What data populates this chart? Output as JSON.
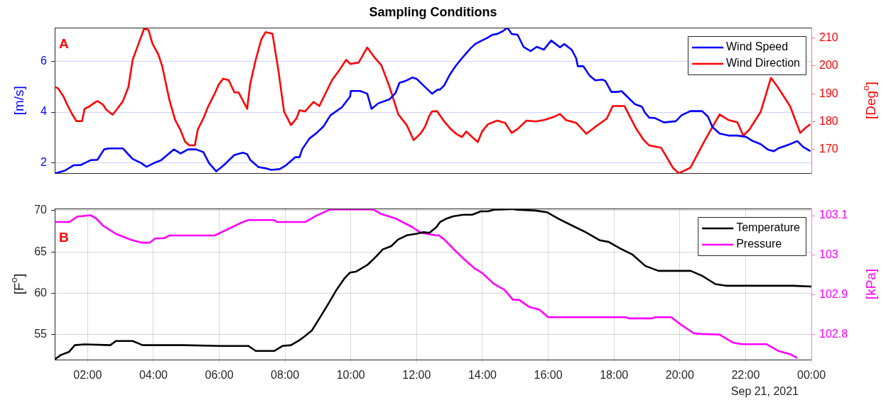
{
  "chart_data": [
    {
      "type": "line",
      "title": "Sampling Conditions",
      "ylabel": "[m/s]",
      "y2label": "[Deg$^{o}$]",
      "annotations": [
        "A"
      ],
      "xlim": [
        1,
        24
      ],
      "ylim": [
        1.57,
        7.35
      ],
      "yticks": [
        2,
        4,
        6
      ],
      "y2lim": [
        161.5,
        213.7
      ],
      "y2ticks": [
        170,
        180,
        190,
        200,
        210
      ],
      "grid": "y",
      "legend": "top right",
      "tick_labels": "y",
      "marker": "none",
      "line_style": "solid",
      "series": [
        {
          "name": "Wind Speed",
          "color": "#0000ff",
          "x": [
            1.01,
            1.31,
            1.57,
            1.79,
            1.91,
            2.09,
            2.3,
            2.5,
            2.64,
            3.07,
            3.24,
            3.37,
            3.63,
            3.79,
            4.02,
            4.23,
            4.62,
            4.83,
            5.05,
            5.3,
            5.52,
            5.69,
            5.91,
            6.12,
            6.46,
            6.72,
            6.85,
            6.94,
            7.19,
            7.45,
            7.58,
            7.84,
            8.01,
            8.18,
            8.31,
            8.44,
            8.52,
            8.74,
            8.95,
            9.17,
            9.38,
            9.73,
            9.98,
            10.0,
            10.28,
            10.5,
            10.63,
            10.84,
            11.18,
            11.36,
            11.48,
            11.65,
            11.87,
            12.0,
            12.3,
            12.47,
            12.64,
            12.71,
            12.84,
            13.02,
            13.2,
            13.38,
            13.64,
            13.78,
            13.95,
            14.13,
            14.31,
            14.45,
            14.62,
            14.76,
            14.89,
            15.07,
            15.25,
            15.47,
            15.65,
            15.87,
            16.09,
            16.23,
            16.36,
            16.49,
            16.71,
            16.85,
            16.9,
            17.07,
            17.25,
            17.43,
            17.65,
            17.74,
            17.92,
            18.09,
            18.23,
            18.45,
            18.63,
            18.85,
            18.94,
            19.07,
            19.25,
            19.52,
            19.88,
            20.05,
            20.32,
            20.68,
            20.86,
            20.99,
            21.21,
            21.48,
            21.75,
            22.01,
            22.19,
            22.46,
            22.68,
            22.86,
            22.99,
            23.35,
            23.57,
            23.75,
            23.97
          ],
          "values": [
            1.57,
            1.68,
            1.89,
            1.9,
            1.98,
            2.09,
            2.11,
            2.52,
            2.56,
            2.56,
            2.32,
            2.14,
            1.98,
            1.83,
            1.98,
            2.09,
            2.52,
            2.36,
            2.52,
            2.52,
            2.41,
            1.98,
            1.65,
            1.87,
            2.3,
            2.39,
            2.33,
            2.11,
            1.82,
            1.76,
            1.71,
            1.74,
            1.87,
            2.06,
            2.21,
            2.21,
            2.52,
            2.95,
            3.16,
            3.43,
            3.87,
            4.19,
            4.62,
            4.84,
            4.84,
            4.73,
            4.13,
            4.35,
            4.51,
            4.76,
            5.16,
            5.23,
            5.37,
            5.32,
            4.94,
            4.73,
            4.89,
            4.89,
            5.06,
            5.51,
            5.85,
            6.14,
            6.53,
            6.7,
            6.82,
            6.93,
            7.07,
            7.1,
            7.21,
            7.35,
            7.1,
            7.07,
            6.59,
            6.42,
            6.59,
            6.48,
            6.84,
            6.7,
            6.57,
            6.7,
            6.48,
            6.14,
            5.82,
            5.82,
            5.46,
            5.26,
            5.29,
            5.23,
            4.8,
            4.8,
            4.83,
            4.55,
            4.32,
            4.21,
            3.98,
            3.78,
            3.76,
            3.59,
            3.64,
            3.87,
            4.04,
            4.04,
            3.81,
            3.41,
            3.15,
            3.07,
            3.07,
            3.02,
            2.87,
            2.73,
            2.51,
            2.45,
            2.56,
            2.73,
            2.85,
            2.62,
            2.45
          ]
        },
        {
          "name": "Wind Direction",
          "color": "#ff0000",
          "axis": "y2",
          "x": [
            1.01,
            1.1,
            1.27,
            1.36,
            1.53,
            1.66,
            1.83,
            1.91,
            2.04,
            2.21,
            2.3,
            2.47,
            2.56,
            2.76,
            2.9,
            3.07,
            3.24,
            3.37,
            3.55,
            3.72,
            3.85,
            3.97,
            4.15,
            4.27,
            4.49,
            4.66,
            4.83,
            4.96,
            5.09,
            5.26,
            5.35,
            5.52,
            5.67,
            5.86,
            5.99,
            6.12,
            6.29,
            6.46,
            6.59,
            6.85,
            6.94,
            7.11,
            7.28,
            7.41,
            7.62,
            7.8,
            7.97,
            8.18,
            8.35,
            8.44,
            8.61,
            8.87,
            9.04,
            9.43,
            9.64,
            9.86,
            9.98,
            10.24,
            10.5,
            10.71,
            10.93,
            11.18,
            11.44,
            11.7,
            11.91,
            12.13,
            12.26,
            12.39,
            12.47,
            12.62,
            12.84,
            13.02,
            13.2,
            13.38,
            13.51,
            13.69,
            13.86,
            13.99,
            14.17,
            14.45,
            14.69,
            14.89,
            15.07,
            15.34,
            15.61,
            15.87,
            16.14,
            16.36,
            16.54,
            16.85,
            17.16,
            17.47,
            17.78,
            17.96,
            18.32,
            18.67,
            18.9,
            19.07,
            19.43,
            19.79,
            19.97,
            20.32,
            20.77,
            21.21,
            21.48,
            21.75,
            21.93,
            22.11,
            22.46,
            22.77,
            22.99,
            23.35,
            23.48,
            23.66,
            23.84,
            23.97
          ],
          "values": [
            192.4,
            192.0,
            189.0,
            186.6,
            182.7,
            180.2,
            180.2,
            184.6,
            185.4,
            186.8,
            187.4,
            186.1,
            184.4,
            182.5,
            184.6,
            187.3,
            192.4,
            202.2,
            208.0,
            213.4,
            212.9,
            208.0,
            204.1,
            199.8,
            187.6,
            180.7,
            176.8,
            172.9,
            171.5,
            171.5,
            177.3,
            181.2,
            185.6,
            190.0,
            193.4,
            195.4,
            194.9,
            190.5,
            190.5,
            184.6,
            193.4,
            202.2,
            209.5,
            212.1,
            211.5,
            198.3,
            183.7,
            178.8,
            181.2,
            184.1,
            183.7,
            187.1,
            185.6,
            194.9,
            198.3,
            202.2,
            200.7,
            201.2,
            206.6,
            203.2,
            200.2,
            192.4,
            182.7,
            178.8,
            173.4,
            175.9,
            178.3,
            182.2,
            183.7,
            183.8,
            180.1,
            177.6,
            175.7,
            174.5,
            176.5,
            174.5,
            172.7,
            176.5,
            179.1,
            180.4,
            179.6,
            176.0,
            177.4,
            180.4,
            180.1,
            180.6,
            181.6,
            182.8,
            180.6,
            179.6,
            175.7,
            178.5,
            181.1,
            185.6,
            185.6,
            177.6,
            173.5,
            171.5,
            170.7,
            163.5,
            161.5,
            163.5,
            173.5,
            182.6,
            180.6,
            179.8,
            175.0,
            177.1,
            183.6,
            195.7,
            192.2,
            185.6,
            181.6,
            176.0,
            178.0,
            179.1
          ]
        }
      ]
    },
    {
      "type": "line",
      "ylabel": "[F$^{o}$]",
      "y2label": "[kPa]",
      "annotations": [
        "B",
        "Sep 21, 2021"
      ],
      "xlim": [
        1,
        24
      ],
      "xticks": [
        {
          "value": 2,
          "label": "02:00"
        },
        {
          "value": 4,
          "label": "04:00"
        },
        {
          "value": 6,
          "label": "06:00"
        },
        {
          "value": 8,
          "label": "08:00"
        },
        {
          "value": 10,
          "label": "10:00"
        },
        {
          "value": 12,
          "label": "12:00"
        },
        {
          "value": 14,
          "label": "14:00"
        },
        {
          "value": 16,
          "label": "16:00"
        },
        {
          "value": 18,
          "label": "18:00"
        },
        {
          "value": 20,
          "label": "20:00"
        },
        {
          "value": 22,
          "label": "22:00"
        },
        {
          "value": 24,
          "label": "00:00"
        }
      ],
      "ylim": [
        51.95,
        70.25
      ],
      "yticks": [
        55,
        60,
        65,
        70
      ],
      "y2lim": [
        102.737,
        103.118
      ],
      "y2ticks": [
        102.8,
        102.9,
        103,
        103.1
      ],
      "grid": true,
      "legend": "top right",
      "marker": "none",
      "line_style": "solid",
      "series": [
        {
          "name": "Temperature",
          "color": "#000000",
          "x": [
            1.01,
            1.18,
            1.44,
            1.61,
            1.91,
            2.69,
            2.86,
            3.37,
            3.67,
            4.92,
            6.03,
            6.89,
            7.11,
            7.67,
            7.92,
            8.18,
            8.44,
            8.61,
            8.82,
            9.04,
            9.3,
            9.55,
            9.81,
            9.98,
            10.15,
            10.5,
            10.76,
            10.97,
            11.23,
            11.44,
            11.7,
            12.0,
            12.21,
            12.39,
            12.6,
            12.71,
            12.89,
            13.11,
            13.42,
            13.69,
            13.95,
            14.17,
            14.35,
            14.89,
            15.07,
            15.61,
            15.96,
            16.32,
            16.77,
            17.13,
            17.57,
            17.84,
            18.19,
            18.55,
            18.95,
            19.35,
            20.33,
            20.68,
            21.08,
            21.4,
            22.11,
            23.45,
            24.0
          ],
          "values": [
            52.0,
            52.5,
            52.9,
            53.7,
            53.8,
            53.7,
            54.2,
            54.2,
            53.7,
            53.7,
            53.6,
            53.6,
            53.0,
            53.0,
            53.6,
            53.7,
            54.3,
            54.8,
            55.5,
            56.9,
            58.6,
            60.3,
            61.8,
            62.5,
            62.6,
            63.4,
            64.4,
            65.3,
            65.7,
            66.5,
            67.0,
            67.2,
            67.4,
            67.3,
            68.0,
            68.6,
            69.0,
            69.3,
            69.5,
            69.5,
            69.9,
            69.9,
            70.1,
            70.2,
            70.1,
            70.0,
            69.8,
            69.0,
            68.1,
            67.4,
            66.4,
            66.2,
            65.4,
            64.7,
            63.3,
            62.7,
            62.7,
            62.1,
            61.1,
            60.9,
            60.9,
            60.9,
            60.8
          ]
        },
        {
          "name": "Pressure",
          "color": "#ff00ff",
          "axis": "y2",
          "x": [
            1.01,
            1.44,
            1.7,
            2.09,
            2.26,
            2.47,
            2.86,
            3.33,
            3.63,
            3.89,
            4.06,
            4.32,
            4.49,
            5.86,
            6.72,
            6.89,
            7.67,
            7.75,
            8.61,
            8.95,
            9.38,
            10.24,
            10.67,
            10.93,
            11.36,
            11.87,
            12.13,
            12.6,
            12.67,
            12.84,
            13.11,
            13.42,
            13.78,
            14.0,
            14.35,
            14.67,
            14.93,
            15.11,
            15.42,
            15.73,
            16.0,
            18.36,
            18.45,
            19.16,
            19.25,
            19.74,
            19.97,
            20.41,
            20.55,
            21.21,
            21.61,
            21.88,
            22.63,
            22.99,
            23.35,
            23.57
          ],
          "values": [
            103.084,
            103.084,
            103.098,
            103.101,
            103.093,
            103.075,
            103.054,
            103.039,
            103.032,
            103.032,
            103.043,
            103.043,
            103.05,
            103.05,
            103.084,
            103.089,
            103.089,
            103.084,
            103.084,
            103.1,
            103.116,
            103.116,
            103.116,
            103.104,
            103.093,
            103.071,
            103.057,
            103.05,
            103.051,
            103.04,
            103.017,
            102.992,
            102.966,
            102.955,
            102.928,
            102.913,
            102.888,
            102.888,
            102.87,
            102.863,
            102.844,
            102.844,
            102.841,
            102.841,
            102.844,
            102.844,
            102.829,
            102.804,
            102.802,
            102.8,
            102.78,
            102.776,
            102.776,
            102.759,
            102.751,
            102.741
          ]
        }
      ]
    }
  ]
}
